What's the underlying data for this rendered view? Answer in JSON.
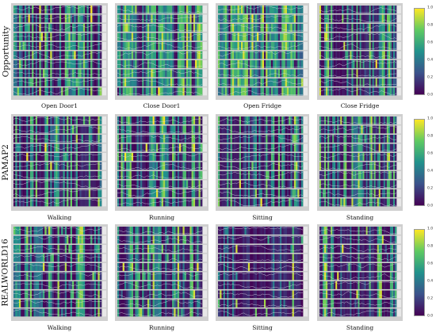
{
  "rows": [
    {
      "dataset": "Opportunity",
      "panels": [
        {
          "caption": "Open Door1",
          "intensity": 0.45,
          "seed": 11
        },
        {
          "caption": "Close Door1",
          "intensity": 0.65,
          "seed": 23
        },
        {
          "caption": "Open Fridge",
          "intensity": 0.6,
          "seed": 37
        },
        {
          "caption": "Close Fridge",
          "intensity": 0.4,
          "seed": 41
        }
      ]
    },
    {
      "dataset": "PAMAP2",
      "panels": [
        {
          "caption": "Walking",
          "intensity": 0.25,
          "seed": 53
        },
        {
          "caption": "Running",
          "intensity": 0.35,
          "seed": 67
        },
        {
          "caption": "Sitting",
          "intensity": 0.4,
          "seed": 71
        },
        {
          "caption": "Standing",
          "intensity": 0.5,
          "seed": 83
        }
      ]
    },
    {
      "dataset": "REALWORLD16",
      "panels": [
        {
          "caption": "Walking",
          "intensity": 0.5,
          "seed": 97
        },
        {
          "caption": "Running",
          "intensity": 0.4,
          "seed": 101
        },
        {
          "caption": "Sitting",
          "intensity": 0.1,
          "seed": 113
        },
        {
          "caption": "Standing",
          "intensity": 0.25,
          "seed": 127
        }
      ]
    }
  ],
  "chart_data": {
    "type": "heatmap",
    "colormap": "viridis",
    "colorbar": {
      "min": 0.0,
      "max": 1.0,
      "ticks": [
        "0.0",
        "0.2",
        "0.4",
        "0.6",
        "0.8",
        "1.0"
      ]
    },
    "channels_per_panel": 10
  }
}
